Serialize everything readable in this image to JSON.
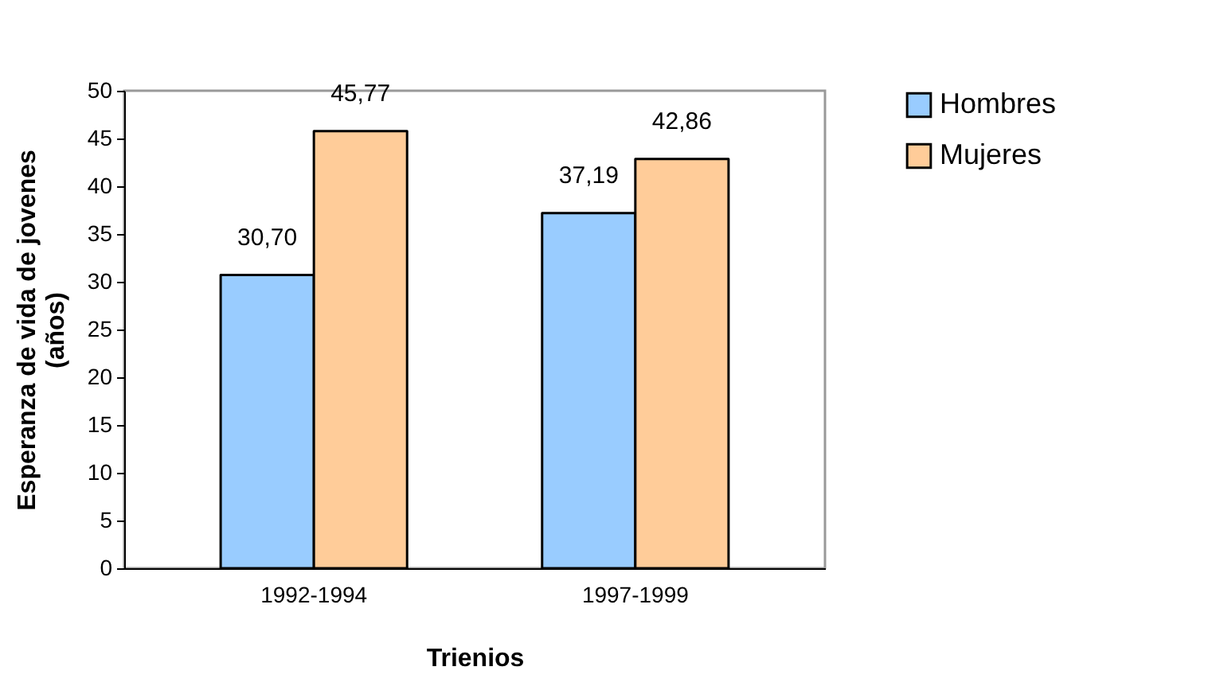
{
  "chart_data": {
    "type": "bar",
    "xlabel": "Trienios",
    "ylabel": "Esperanza de vida de jovenes\n(años)",
    "categories": [
      "1992-1994",
      "1997-1999"
    ],
    "series": [
      {
        "name": "Hombres",
        "color": "#99ccff",
        "values": [
          30.7,
          37.19
        ],
        "value_labels": [
          "30,70",
          "37,19"
        ]
      },
      {
        "name": "Mujeres",
        "color": "#ffcc99",
        "values": [
          45.77,
          42.86
        ],
        "value_labels": [
          "45,77",
          "42,86"
        ]
      }
    ],
    "ylim": [
      0,
      50
    ],
    "yticks": [
      0,
      5,
      10,
      15,
      20,
      25,
      30,
      35,
      40,
      45,
      50
    ],
    "grid": false,
    "legend": "right"
  }
}
